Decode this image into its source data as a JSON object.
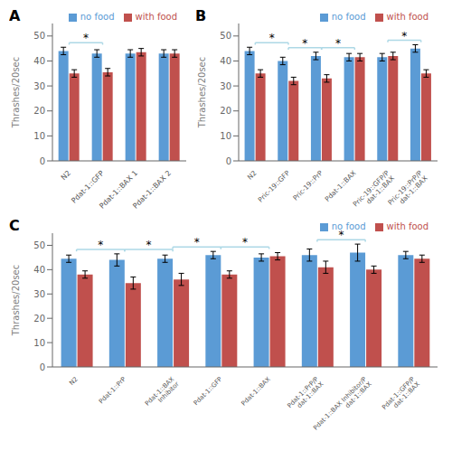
{
  "chart_data": [
    {
      "type": "bar",
      "title": "A",
      "ylabel": "Thrashes/20sec",
      "categories": [
        "N2",
        "Pdat-1::GFP",
        "Pdat-1::BAX 1",
        "Pdat-1::BAX 2"
      ],
      "series": [
        {
          "name": "no food",
          "color": "#5b9bd5",
          "values": [
            44,
            43,
            43,
            43
          ],
          "errors": [
            1.5,
            1.5,
            1.5,
            1.5
          ]
        },
        {
          "name": "with food",
          "color": "#c0504d",
          "values": [
            35,
            35.5,
            43.5,
            43
          ],
          "errors": [
            1.5,
            1.5,
            1.5,
            1.5
          ]
        }
      ],
      "ylim": [
        0,
        55
      ],
      "yticks": [
        0,
        10,
        20,
        30,
        40,
        50
      ],
      "grid": false,
      "legend": "upper right",
      "annotations": [
        {
          "text": "*",
          "series": "no food",
          "between": [
            "N2",
            "Pdat-1::GFP"
          ]
        }
      ]
    },
    {
      "type": "bar",
      "title": "B",
      "ylabel": "Thrashes/20sec",
      "categories": [
        "N2",
        "Pric-19::GFP",
        "Pric-19::PrP",
        "Pdat-1::BAX",
        "Pric-19::GFP/P\ndat-1::BAX",
        "Pric-19::PrP/P\ndat-1::BAX"
      ],
      "series": [
        {
          "name": "no food",
          "color": "#5b9bd5",
          "values": [
            44,
            40,
            42,
            41.5,
            41.5,
            45
          ],
          "errors": [
            1.5,
            1.5,
            1.5,
            1.5,
            1.5,
            1.5
          ]
        },
        {
          "name": "with food",
          "color": "#c0504d",
          "values": [
            35,
            32,
            33,
            41.5,
            42,
            35
          ],
          "errors": [
            1.5,
            1.5,
            1.5,
            1.5,
            1.5,
            1.5
          ]
        }
      ],
      "ylim": [
        0,
        55
      ],
      "yticks": [
        0,
        10,
        20,
        30,
        40,
        50
      ],
      "grid": false,
      "legend": "upper right",
      "annotations": [
        {
          "text": "*",
          "series": "no food",
          "between": [
            "N2",
            "Pric-19::GFP"
          ]
        },
        {
          "text": "*",
          "series": "no food",
          "between": [
            "Pric-19::GFP",
            "Pric-19::PrP"
          ]
        },
        {
          "text": "*",
          "series": "no food",
          "between": [
            "Pric-19::PrP",
            "Pdat-1::BAX"
          ]
        },
        {
          "text": "*",
          "series": "no food",
          "between": [
            "Pric-19::GFP/P\ndat-1::BAX",
            "Pric-19::PrP/P\ndat-1::BAX"
          ]
        }
      ]
    },
    {
      "type": "bar",
      "title": "C",
      "ylabel": "Thrashes/20sec",
      "categories": [
        "N2",
        "Pdat-1::PrP",
        "Pdat-1::BAX\nInhibitor",
        "Pdat-1::GFP",
        "Pdat-1::BAX",
        "Pdat-1::PrP/P\ndat-1::BAX",
        "Pdat-1::BAX Inhibitor/P\ndat-1::BAX",
        "Pdat-1::GFP/P\ndat-1::BAX"
      ],
      "series": [
        {
          "name": "no food",
          "color": "#5b9bd5",
          "values": [
            44.5,
            44,
            44.5,
            46,
            45,
            46,
            47,
            46
          ],
          "errors": [
            1.5,
            2.5,
            1.5,
            1.5,
            1.5,
            2.5,
            3.5,
            1.5
          ]
        },
        {
          "name": "with food",
          "color": "#c0504d",
          "values": [
            38,
            34.5,
            36,
            38,
            45.5,
            41,
            40,
            44.5
          ],
          "errors": [
            1.5,
            2.5,
            2.5,
            1.5,
            1.5,
            2.5,
            1.5,
            1.5
          ]
        }
      ],
      "ylim": [
        0,
        55
      ],
      "yticks": [
        0,
        10,
        20,
        30,
        40,
        50
      ],
      "grid": false,
      "legend": "upper right",
      "annotations": [
        {
          "text": "*",
          "series": "no food",
          "between": [
            "N2",
            "Pdat-1::PrP"
          ]
        },
        {
          "text": "*",
          "series": "no food",
          "between": [
            "Pdat-1::PrP",
            "Pdat-1::BAX\nInhibitor"
          ]
        },
        {
          "text": "*",
          "series": "no food",
          "between": [
            "Pdat-1::BAX\nInhibitor",
            "Pdat-1::GFP"
          ]
        },
        {
          "text": "*",
          "series": "no food",
          "between": [
            "Pdat-1::GFP",
            "Pdat-1::BAX"
          ]
        },
        {
          "text": "*",
          "series": "no food",
          "between": [
            "Pdat-1::PrP/P\ndat-1::BAX",
            "Pdat-1::BAX Inhibitor/P\ndat-1::BAX"
          ]
        }
      ]
    }
  ]
}
